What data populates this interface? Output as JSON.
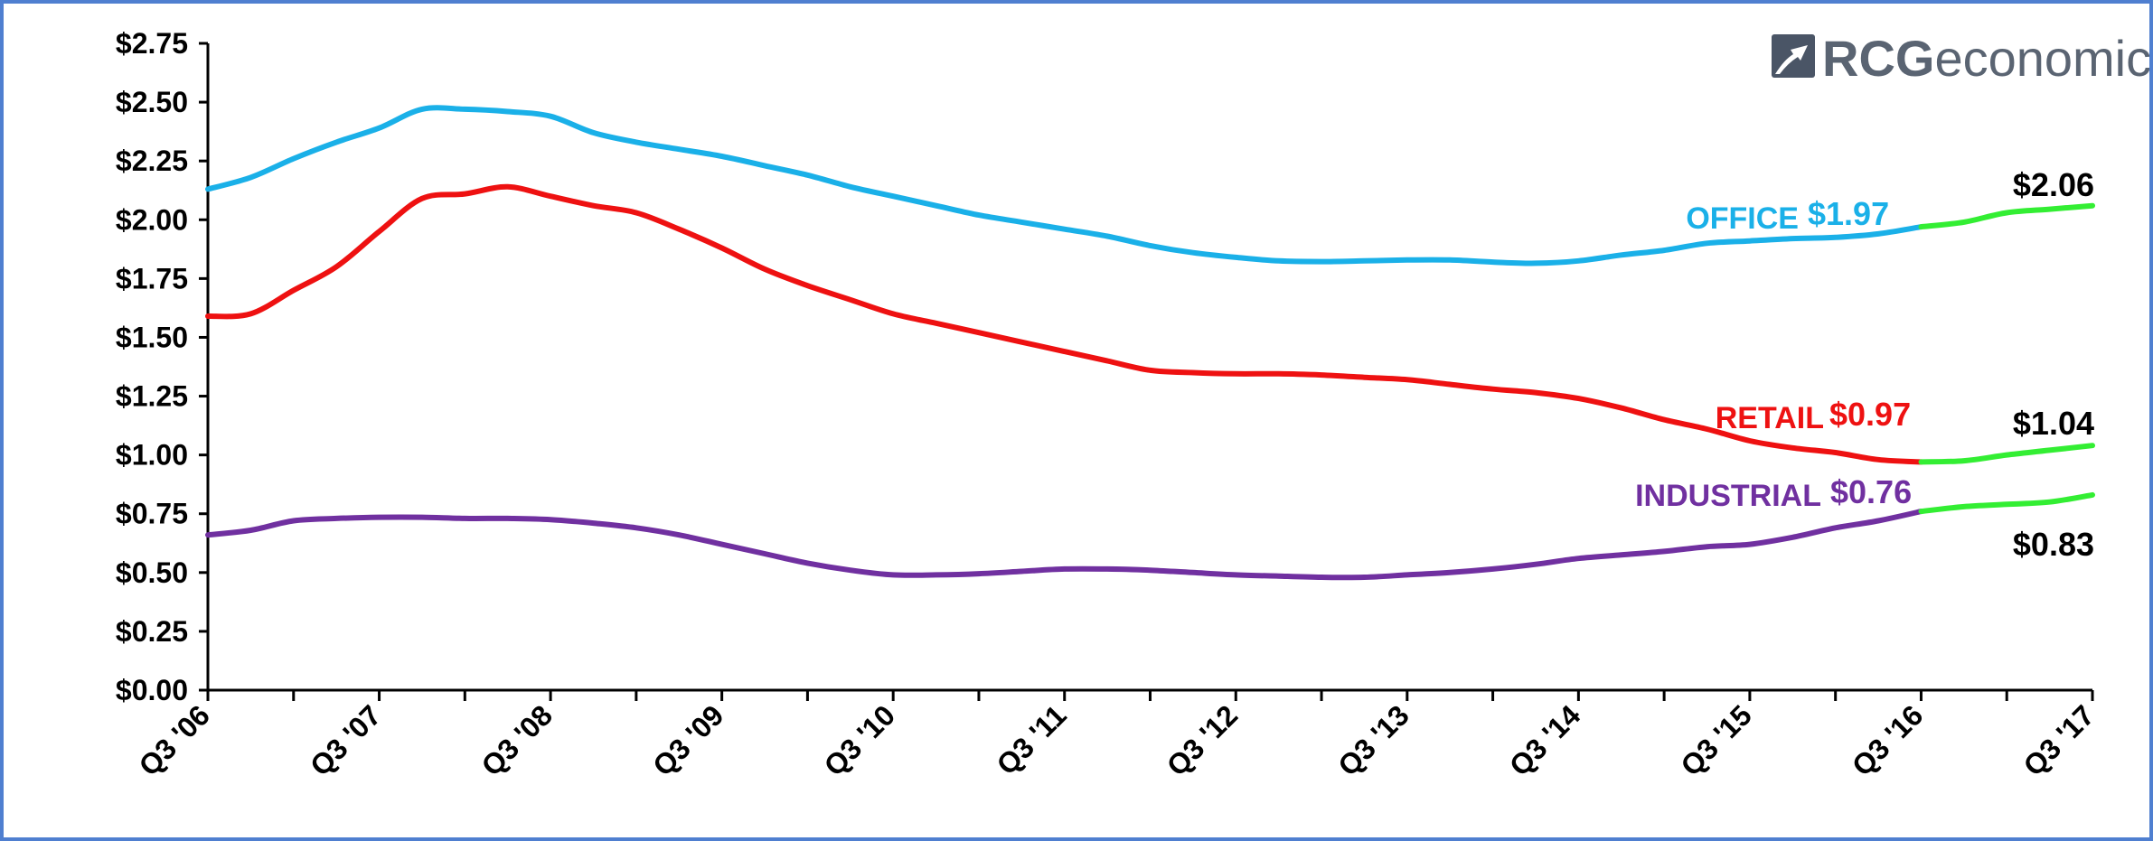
{
  "logo": {
    "name_bold": "RCG",
    "name_light": "economics",
    "color": "#5a6472"
  },
  "chart_data": {
    "type": "line",
    "title": "",
    "xlabel": "",
    "ylabel": "",
    "ylim": [
      0,
      2.75
    ],
    "yticks": [
      "$0.00",
      "$0.25",
      "$0.50",
      "$0.75",
      "$1.00",
      "$1.25",
      "$1.50",
      "$1.75",
      "$2.00",
      "$2.25",
      "$2.50",
      "$2.75"
    ],
    "ytick_values": [
      0,
      0.25,
      0.5,
      0.75,
      1.0,
      1.25,
      1.5,
      1.75,
      2.0,
      2.25,
      2.5,
      2.75
    ],
    "xticks": [
      "Q3 '06",
      "Q3 '07",
      "Q3 '08",
      "Q3 '09",
      "Q3 '10",
      "Q3 '11",
      "Q3 '12",
      "Q3 '13",
      "Q3 '14",
      "Q3 '15",
      "Q3 '16",
      "Q3 '17"
    ],
    "xtick_quarter_index": [
      0,
      4,
      8,
      12,
      16,
      20,
      24,
      28,
      32,
      36,
      40,
      44
    ],
    "quarters": 45,
    "grid": false,
    "legend": "none",
    "forecast_color": "#33ee33",
    "series": [
      {
        "name": "OFFICE",
        "color": "#1ab0e8",
        "values": [
          2.13,
          2.18,
          2.26,
          2.33,
          2.39,
          2.47,
          2.47,
          2.46,
          2.44,
          2.37,
          2.33,
          2.3,
          2.27,
          2.23,
          2.19,
          2.14,
          2.1,
          2.06,
          2.02,
          1.99,
          1.96,
          1.93,
          1.89,
          1.86,
          1.84,
          1.825,
          1.822,
          1.825,
          1.829,
          1.829,
          1.82,
          1.815,
          1.825,
          1.85,
          1.87,
          1.9,
          1.91,
          1.92,
          1.925,
          1.94,
          1.97,
          1.99,
          2.03,
          2.045,
          2.06
        ],
        "forecast_from_index": 40,
        "label_name": "OFFICE",
        "label_value": "$1.97",
        "end_label": "$2.06"
      },
      {
        "name": "RETAIL",
        "color": "#ee1111",
        "values": [
          1.59,
          1.6,
          1.7,
          1.8,
          1.95,
          2.09,
          2.11,
          2.14,
          2.1,
          2.06,
          2.03,
          1.96,
          1.88,
          1.79,
          1.72,
          1.66,
          1.6,
          1.56,
          1.52,
          1.48,
          1.44,
          1.4,
          1.36,
          1.35,
          1.345,
          1.345,
          1.34,
          1.33,
          1.32,
          1.3,
          1.28,
          1.265,
          1.24,
          1.2,
          1.15,
          1.11,
          1.06,
          1.03,
          1.01,
          0.98,
          0.97,
          0.975,
          1.0,
          1.02,
          1.04
        ],
        "forecast_from_index": 40,
        "label_name": "RETAIL",
        "label_value": "$0.97",
        "end_label": "$1.04"
      },
      {
        "name": "INDUSTRIAL",
        "color": "#7030a0",
        "values": [
          0.66,
          0.68,
          0.72,
          0.73,
          0.735,
          0.735,
          0.73,
          0.73,
          0.725,
          0.71,
          0.69,
          0.66,
          0.62,
          0.58,
          0.54,
          0.51,
          0.49,
          0.49,
          0.495,
          0.505,
          0.515,
          0.515,
          0.51,
          0.5,
          0.49,
          0.485,
          0.48,
          0.48,
          0.49,
          0.5,
          0.515,
          0.535,
          0.56,
          0.575,
          0.59,
          0.61,
          0.62,
          0.65,
          0.69,
          0.72,
          0.76,
          0.78,
          0.79,
          0.8,
          0.83
        ],
        "forecast_from_index": 40,
        "label_name": "INDUSTRIAL",
        "label_value": "$0.76",
        "end_label": "$0.83"
      }
    ]
  }
}
